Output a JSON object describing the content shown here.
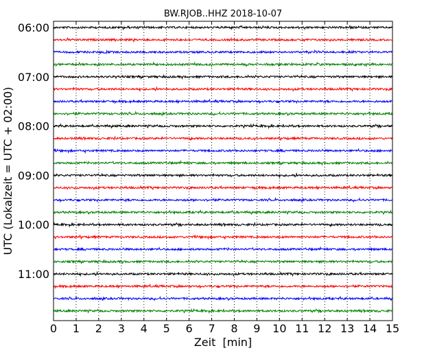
{
  "chart_data": {
    "type": "line",
    "title": "BW.RJOB..HHZ 2018-10-07",
    "xlabel": "Zeit  [min]",
    "ylabel": "UTC (Lokalzeit = UTC + 02:00)",
    "xlim": [
      0,
      15
    ],
    "x_ticks": [
      "0",
      "1",
      "2",
      "3",
      "4",
      "5",
      "6",
      "7",
      "8",
      "9",
      "10",
      "11",
      "12",
      "13",
      "14",
      "15"
    ],
    "y_tick_labels": [
      "06:00",
      "07:00",
      "08:00",
      "09:00",
      "10:00",
      "11:00"
    ],
    "traces_per_hour": 4,
    "trace_count": 24,
    "trace_colors": [
      "#000000",
      "#ff0000",
      "#0000ff",
      "#008000"
    ],
    "grid": "vertical dotted at each minute"
  }
}
